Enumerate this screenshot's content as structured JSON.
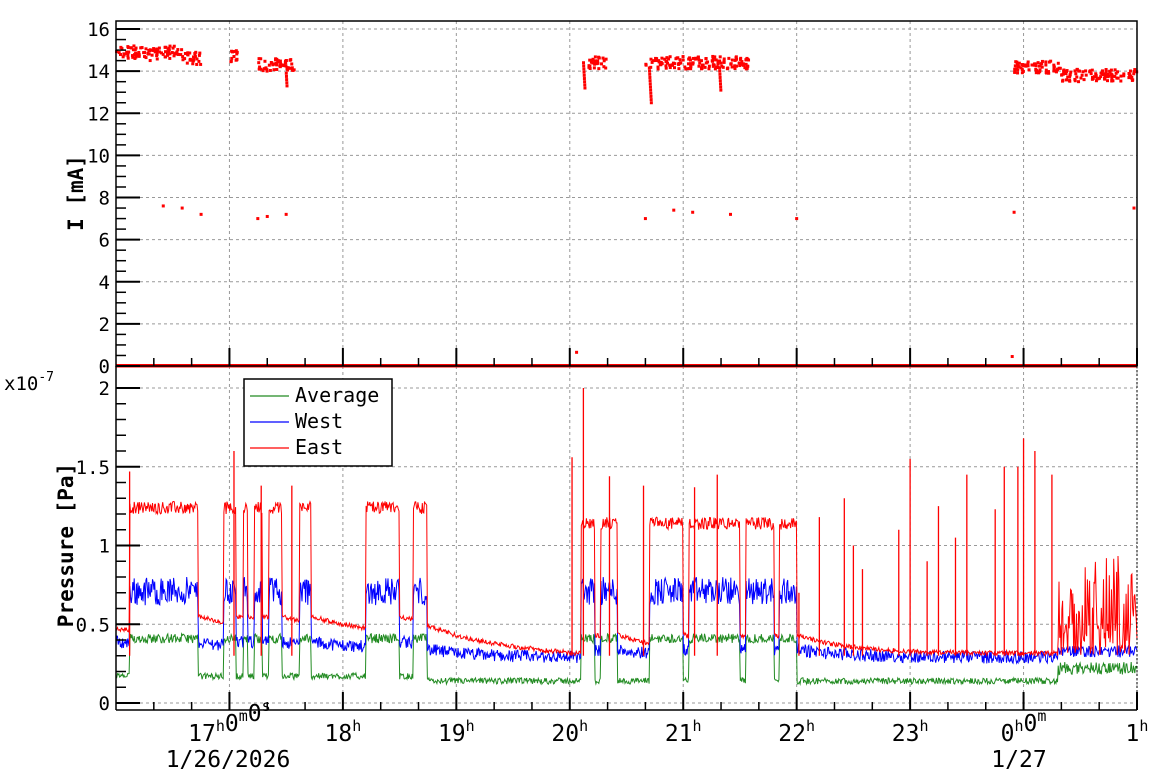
{
  "chart_data": [
    {
      "type": "scatter",
      "title": "",
      "xlabel": "",
      "ylabel": "I [mA]",
      "ylim": [
        0,
        16.4
      ],
      "yticks": [
        0,
        2,
        4,
        6,
        8,
        10,
        12,
        14,
        16
      ],
      "grid": true,
      "x_range": [
        "16:00 1/26/2026",
        "01:00 1/27"
      ],
      "series": [
        {
          "name": "I",
          "color": "#ff0000",
          "clusters": [
            {
              "x_start": "16:00",
              "x_end": "16:15",
              "y": 14.9
            },
            {
              "x_start": "16:15",
              "x_end": "16:25",
              "y": 14.8
            },
            {
              "x_start": "16:25",
              "x_end": "16:35",
              "y": 14.9
            },
            {
              "x_start": "16:35",
              "x_end": "16:45",
              "y": 14.6
            },
            {
              "x_start": "17:00",
              "x_end": "17:05",
              "y": 14.7
            },
            {
              "x_start": "17:15",
              "x_end": "17:30",
              "y": 14.3
            },
            {
              "x_start": "17:30",
              "x_end": "17:35",
              "y": 14.3
            },
            {
              "x_start": "20:10",
              "x_end": "20:20",
              "y": 14.4
            },
            {
              "x_start": "20:40",
              "x_end": "21:20",
              "y": 14.4
            },
            {
              "x_start": "21:20",
              "x_end": "21:35",
              "y": 14.4
            },
            {
              "x_start": "23:55",
              "x_end": "00:20",
              "y": 14.2
            },
            {
              "x_start": "00:20",
              "x_end": "01:00",
              "y": 13.8
            }
          ],
          "low_points": [
            {
              "x": "16:25",
              "y": 7.6
            },
            {
              "x": "16:35",
              "y": 7.5
            },
            {
              "x": "16:45",
              "y": 7.2
            },
            {
              "x": "17:15",
              "y": 7.0
            },
            {
              "x": "17:20",
              "y": 7.1
            },
            {
              "x": "17:30",
              "y": 7.2
            },
            {
              "x": "20:40",
              "y": 7.0
            },
            {
              "x": "20:55",
              "y": 7.4
            },
            {
              "x": "21:05",
              "y": 7.3
            },
            {
              "x": "21:25",
              "y": 7.2
            },
            {
              "x": "22:00",
              "y": 7.0
            },
            {
              "x": "23:55",
              "y": 7.3
            },
            {
              "x": "01:00",
              "y": 7.5
            }
          ],
          "baseline": 0
        }
      ]
    },
    {
      "type": "line",
      "title": "",
      "xlabel": "",
      "ylabel": "Pressure [Pa]",
      "y_multiplier": "x10^-7",
      "ylim": [
        0,
        2.07
      ],
      "yticks": [
        0,
        0.5,
        1,
        1.5,
        2
      ],
      "grid": true,
      "legend_position": "top-left",
      "series": [
        {
          "name": "Average",
          "color": "#228b22",
          "baseline": 0.15,
          "peak": 0.45
        },
        {
          "name": "West",
          "color": "#0000ff",
          "baseline": 0.28,
          "peak": 0.8
        },
        {
          "name": "East",
          "color": "#ff0000",
          "baseline": 0.3,
          "peak": 2.0
        }
      ]
    }
  ],
  "x_axis": {
    "ticks": [
      {
        "main": "17",
        "sup": "h",
        "main2": "0",
        "sup2": "m",
        "main3": "0",
        "sup3": "s"
      },
      {
        "main": "18",
        "sup": "h"
      },
      {
        "main": "19",
        "sup": "h"
      },
      {
        "main": "20",
        "sup": "h"
      },
      {
        "main": "21",
        "sup": "h"
      },
      {
        "main": "22",
        "sup": "h"
      },
      {
        "main": "23",
        "sup": "h"
      },
      {
        "main": "0",
        "sup": "h",
        "main2": "0",
        "sup2": "m"
      },
      {
        "main": "1",
        "sup": "h"
      }
    ],
    "date_left": "1/26/2026",
    "date_right": "1/27"
  },
  "top_plot": {
    "ylabel": "I [mA]",
    "ytick_labels": [
      "0",
      "2",
      "4",
      "6",
      "8",
      "10",
      "12",
      "14",
      "16"
    ]
  },
  "bottom_plot": {
    "ylabel": "Pressure [Pa]",
    "multiplier_base": "x10",
    "multiplier_exp": "-7",
    "ytick_labels": [
      "0",
      "0.5",
      "1",
      "1.5",
      "2"
    ],
    "legend": [
      {
        "label": "Average",
        "color": "#228b22"
      },
      {
        "label": "West",
        "color": "#0000ff"
      },
      {
        "label": "East",
        "color": "#ff0000"
      }
    ]
  }
}
